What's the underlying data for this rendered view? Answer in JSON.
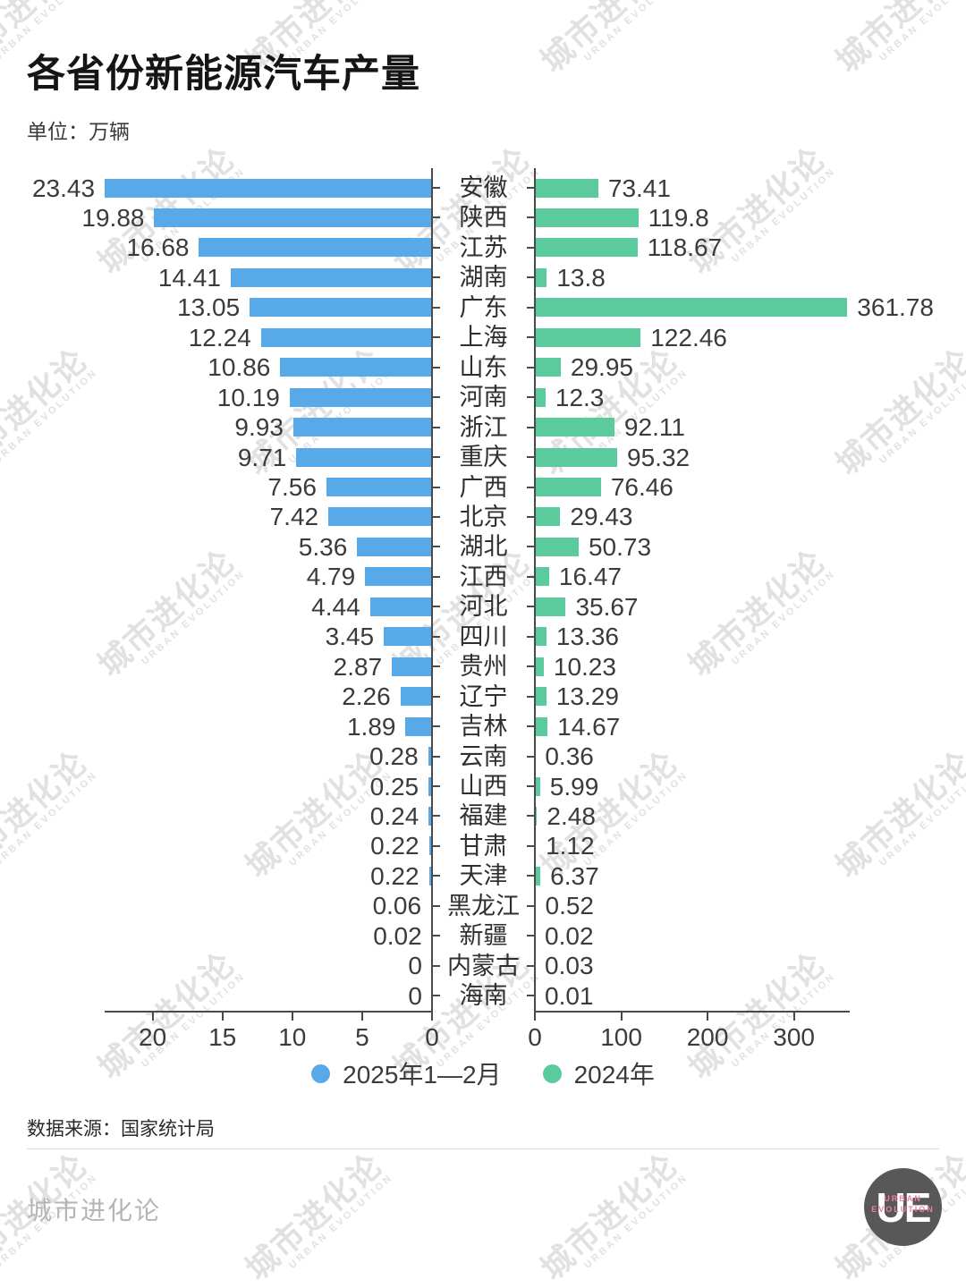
{
  "title": "各省份新能源汽车产量",
  "unit_label": "单位：万辆",
  "source": "数据来源：国家统计局",
  "colors": {
    "blue": "#57A9E8",
    "green": "#5BCB9E",
    "axis": "#4a4a4a"
  },
  "chart_data": {
    "type": "bar",
    "orientation": "horizontal-diverging",
    "title": "各省份新能源汽车产量",
    "unit": "万辆",
    "categories": [
      "安徽",
      "陕西",
      "江苏",
      "湖南",
      "广东",
      "上海",
      "山东",
      "河南",
      "浙江",
      "重庆",
      "广西",
      "北京",
      "湖北",
      "江西",
      "河北",
      "四川",
      "贵州",
      "辽宁",
      "吉林",
      "云南",
      "山西",
      "福建",
      "甘肃",
      "天津",
      "黑龙江",
      "新疆",
      "内蒙古",
      "海南"
    ],
    "series": [
      {
        "name": "2025年1—2月",
        "side": "left",
        "color": "#57A9E8",
        "values": [
          23.43,
          19.88,
          16.68,
          14.41,
          13.05,
          12.24,
          10.86,
          10.19,
          9.93,
          9.71,
          7.56,
          7.42,
          5.36,
          4.79,
          4.44,
          3.45,
          2.87,
          2.26,
          1.89,
          0.28,
          0.25,
          0.24,
          0.22,
          0.22,
          0.06,
          0.02,
          0,
          0
        ],
        "labels": [
          "23.43",
          "19.88",
          "16.68",
          "14.41",
          "13.05",
          "12.24",
          "10.86",
          "10.19",
          "9.93",
          "9.71",
          "7.56",
          "7.42",
          "5.36",
          "4.79",
          "4.44",
          "3.45",
          "2.87",
          "2.26",
          "1.89",
          "0.28",
          "0.25",
          "0.24",
          "0.22",
          "0.22",
          "0.06",
          "0.02",
          "0",
          "0"
        ]
      },
      {
        "name": "2024年",
        "side": "right",
        "color": "#5BCB9E",
        "values": [
          73.41,
          119.8,
          118.67,
          13.8,
          361.78,
          122.46,
          29.95,
          12.3,
          92.11,
          95.32,
          76.46,
          29.43,
          50.73,
          16.47,
          35.67,
          13.36,
          10.23,
          13.29,
          14.67,
          0.36,
          5.99,
          2.48,
          1.12,
          6.37,
          0.52,
          0.02,
          0.03,
          0.01
        ],
        "labels": [
          "73.41",
          "119.8",
          "118.67",
          "13.8",
          "361.78",
          "122.46",
          "29.95",
          "12.3",
          "92.11",
          "95.32",
          "76.46",
          "29.43",
          "50.73",
          "16.47",
          "35.67",
          "13.36",
          "10.23",
          "13.29",
          "14.67",
          "0.36",
          "5.99",
          "2.48",
          "1.12",
          "6.37",
          "0.52",
          "0.02",
          "0.03",
          "0.01"
        ]
      }
    ],
    "left_axis_ticks": [
      "20",
      "15",
      "10",
      "5",
      "0"
    ],
    "right_axis_ticks": [
      "0",
      "100",
      "200",
      "300"
    ],
    "left_xlim": [
      0,
      23.43
    ],
    "right_xlim": [
      0,
      365
    ],
    "grid": false,
    "legend_position": "bottom-center"
  },
  "legend": [
    {
      "label": "2025年1—2月",
      "color": "#57A9E8"
    },
    {
      "label": "2024年",
      "color": "#5BCB9E"
    }
  ],
  "footer": {
    "brand": "城市进化论",
    "logo_text": "UE",
    "logo_sub1": "URBAN",
    "logo_sub2": "EVOLUTION"
  },
  "watermark": {
    "line1": "城市进化论",
    "line2": "URBAN EVOLUTION"
  }
}
